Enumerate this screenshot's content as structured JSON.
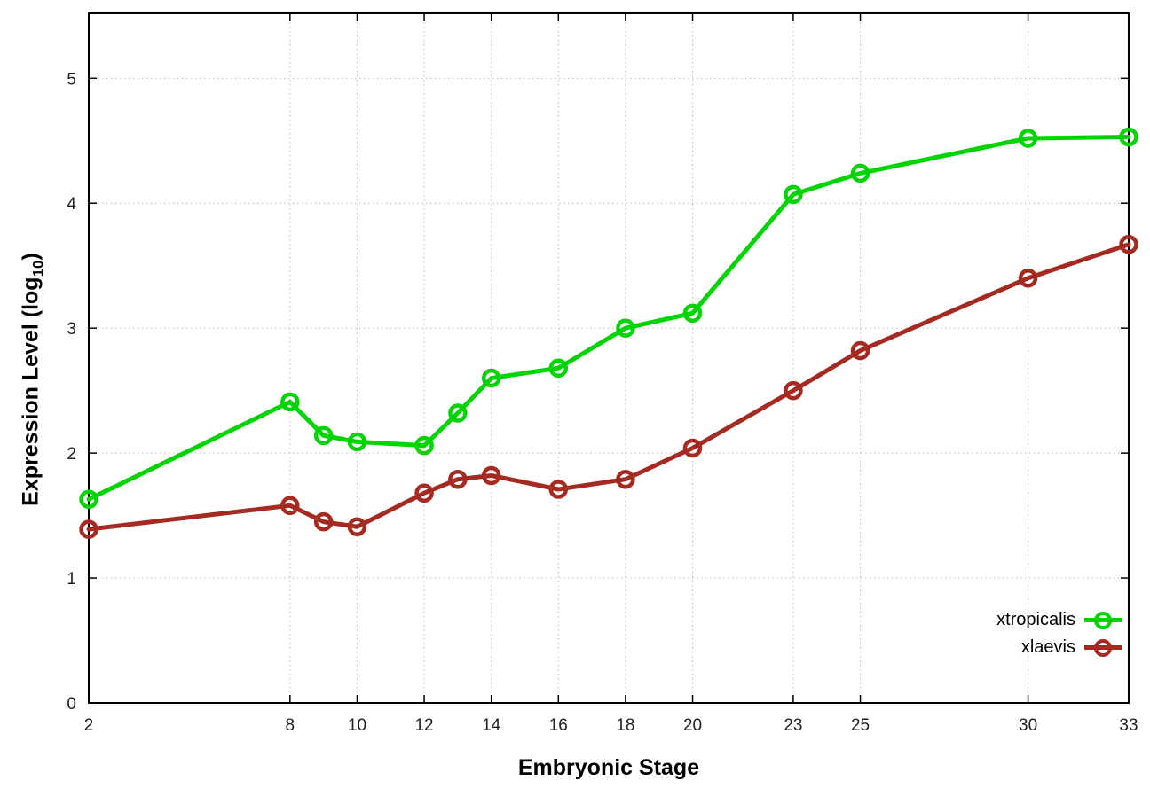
{
  "chart_data": {
    "type": "line",
    "x": [
      2,
      8,
      9,
      10,
      12,
      13,
      14,
      16,
      18,
      20,
      23,
      25,
      30,
      33
    ],
    "series": [
      {
        "name": "xtropicalis",
        "color": "#00d400",
        "values": [
          1.63,
          2.41,
          2.14,
          2.09,
          2.06,
          2.32,
          2.6,
          2.68,
          3.0,
          3.12,
          4.07,
          4.24,
          4.52,
          4.53
        ]
      },
      {
        "name": "xlaevis",
        "color": "#a52a21",
        "values": [
          1.39,
          1.58,
          1.45,
          1.41,
          1.68,
          1.79,
          1.82,
          1.71,
          1.79,
          2.04,
          2.5,
          2.82,
          3.4,
          3.67
        ]
      }
    ],
    "title": "",
    "xlabel": "Embryonic Stage",
    "ylabel": "Expression Level (log10)",
    "ylabel_parts": {
      "main": "Expression Level (log",
      "sub": "10",
      "end": ")"
    },
    "xticks": [
      2,
      8,
      10,
      12,
      14,
      16,
      18,
      20,
      23,
      25,
      30,
      33
    ],
    "yticks": [
      0,
      1,
      2,
      3,
      4,
      5
    ],
    "xlim": [
      2,
      33
    ],
    "ylim": [
      0,
      5.52
    ],
    "grid": "dotted",
    "legend_position": "inside-bottom-right",
    "marker": "open-circle"
  }
}
